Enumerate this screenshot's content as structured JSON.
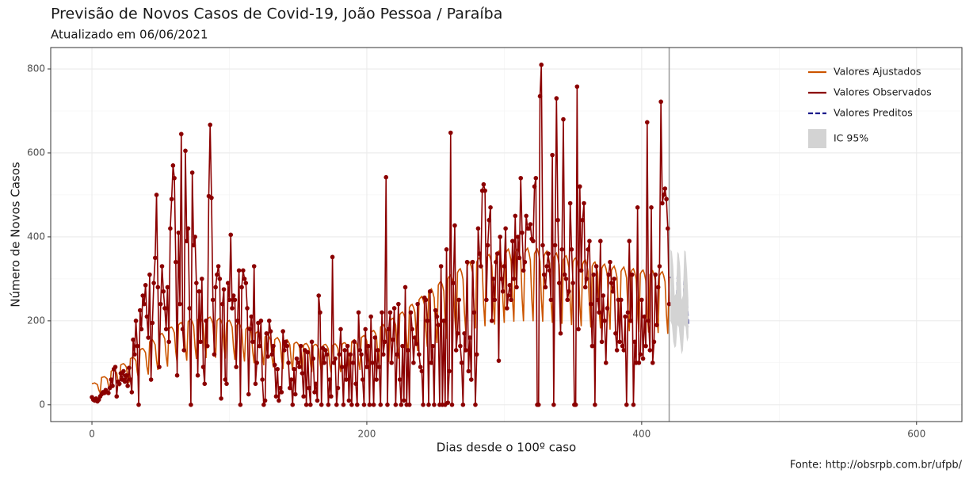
{
  "chart_data": {
    "type": "line",
    "title": "Previsão de Novos Casos de Covid-19, João Pessoa / Paraíba",
    "subtitle": "Atualizado em 06/06/2021",
    "x_label": "Dias desde o 100º caso",
    "y_label": "Número de Novos Casos",
    "caption": "Fonte: http://obsrpb.com.br/ufpb/",
    "xlim": [
      -30,
      633
    ],
    "ylim": [
      -40,
      851
    ],
    "xticks": [
      0,
      200,
      400,
      600
    ],
    "yticks": [
      0,
      200,
      400,
      600,
      800
    ],
    "x_minor_ticks": [
      100,
      300,
      500
    ],
    "y_minor_ticks": [
      100,
      300,
      500,
      700
    ],
    "grid": true,
    "vline": 420,
    "legend_position": "top-right",
    "x": [
      0,
      1,
      2,
      3,
      4,
      5,
      6,
      7,
      8,
      9,
      10,
      11,
      12,
      13,
      14,
      15,
      16,
      17,
      18,
      19,
      20,
      21,
      22,
      23,
      24,
      25,
      26,
      27,
      28,
      29,
      30,
      31,
      32,
      33,
      34,
      35,
      36,
      37,
      38,
      39,
      40,
      41,
      42,
      43,
      44,
      45,
      46,
      47,
      48,
      49,
      50,
      51,
      52,
      53,
      54,
      55,
      56,
      57,
      58,
      59,
      60,
      61,
      62,
      63,
      64,
      65,
      66,
      67,
      68,
      69,
      70,
      71,
      72,
      73,
      74,
      75,
      76,
      77,
      78,
      79,
      80,
      81,
      82,
      83,
      84,
      85,
      86,
      87,
      88,
      89,
      90,
      91,
      92,
      93,
      94,
      95,
      96,
      97,
      98,
      99,
      100,
      101,
      102,
      103,
      104,
      105,
      106,
      107,
      108,
      109,
      110,
      111,
      112,
      113,
      114,
      115,
      116,
      117,
      118,
      119,
      120,
      121,
      122,
      123,
      124,
      125,
      126,
      127,
      128,
      129,
      130,
      131,
      132,
      133,
      134,
      135,
      136,
      137,
      138,
      139,
      140,
      141,
      142,
      143,
      144,
      145,
      146,
      147,
      148,
      149,
      150,
      151,
      152,
      153,
      154,
      155,
      156,
      157,
      158,
      159,
      160,
      161,
      162,
      163,
      164,
      165,
      166,
      167,
      168,
      169,
      170,
      171,
      172,
      173,
      174,
      175,
      176,
      177,
      178,
      179,
      180,
      181,
      182,
      183,
      184,
      185,
      186,
      187,
      188,
      189,
      190,
      191,
      192,
      193,
      194,
      195,
      196,
      197,
      198,
      199,
      200,
      201,
      202,
      203,
      204,
      205,
      206,
      207,
      208,
      209,
      210,
      211,
      212,
      213,
      214,
      215,
      216,
      217,
      218,
      219,
      220,
      221,
      222,
      223,
      224,
      225,
      226,
      227,
      228,
      229,
      230,
      231,
      232,
      233,
      234,
      235,
      236,
      237,
      238,
      239,
      240,
      241,
      242,
      243,
      244,
      245,
      246,
      247,
      248,
      249,
      250,
      251,
      252,
      253,
      254,
      255,
      256,
      257,
      258,
      259,
      260,
      261,
      262,
      263,
      264,
      265,
      266,
      267,
      268,
      269,
      270,
      271,
      272,
      273,
      274,
      275,
      276,
      277,
      278,
      279,
      280,
      281,
      282,
      283,
      284,
      285,
      286,
      287,
      288,
      289,
      290,
      291,
      292,
      293,
      294,
      295,
      296,
      297,
      298,
      299,
      300,
      301,
      302,
      303,
      304,
      305,
      306,
      307,
      308,
      309,
      310,
      311,
      312,
      313,
      314,
      315,
      316,
      317,
      318,
      319,
      320,
      321,
      322,
      323,
      324,
      325,
      326,
      327,
      328,
      329,
      330,
      331,
      332,
      333,
      334,
      335,
      336,
      337,
      338,
      339,
      340,
      341,
      342,
      343,
      344,
      345,
      346,
      347,
      348,
      349,
      350,
      351,
      352,
      353,
      354,
      355,
      356,
      357,
      358,
      359,
      360,
      361,
      362,
      363,
      364,
      365,
      366,
      367,
      368,
      369,
      370,
      371,
      372,
      373,
      374,
      375,
      376,
      377,
      378,
      379,
      380,
      381,
      382,
      383,
      384,
      385,
      386,
      387,
      388,
      389,
      390,
      391,
      392,
      393,
      394,
      395,
      396,
      397,
      398,
      399,
      400,
      401,
      402,
      403,
      404,
      405,
      406,
      407,
      408,
      409,
      410,
      411,
      412,
      413,
      414,
      415,
      416,
      417,
      418,
      419,
      420
    ],
    "series": [
      {
        "name": "Valores Ajustados",
        "color": "#cc5500",
        "values": [
          50,
          51,
          52,
          50,
          48,
          35,
          28,
          65,
          66,
          67,
          65,
          62,
          46,
          36,
          80,
          82,
          82,
          80,
          76,
          56,
          44,
          95,
          97,
          98,
          95,
          90,
          67,
          52,
          110,
          112,
          113,
          110,
          105,
          77,
          61,
          130,
          133,
          134,
          130,
          124,
          91,
          72,
          150,
          153,
          155,
          150,
          143,
          105,
          83,
          165,
          168,
          170,
          165,
          157,
          116,
          91,
          180,
          184,
          185,
          180,
          171,
          126,
          99,
          190,
          194,
          196,
          190,
          181,
          133,
          105,
          198,
          202,
          204,
          198,
          188,
          139,
          109,
          202,
          206,
          208,
          202,
          192,
          141,
          111,
          203,
          207,
          209,
          203,
          193,
          142,
          112,
          200,
          204,
          206,
          200,
          190,
          140,
          110,
          195,
          199,
          201,
          195,
          185,
          137,
          107,
          188,
          192,
          194,
          188,
          179,
          132,
          103,
          180,
          184,
          185,
          180,
          171,
          126,
          99,
          170,
          173,
          175,
          170,
          162,
          119,
          94,
          162,
          165,
          167,
          162,
          154,
          113,
          89,
          155,
          158,
          160,
          155,
          147,
          109,
          85,
          150,
          153,
          155,
          150,
          143,
          105,
          83,
          145,
          148,
          149,
          145,
          138,
          102,
          80,
          142,
          145,
          146,
          142,
          135,
          99,
          78,
          140,
          143,
          144,
          140,
          133,
          98,
          77,
          140,
          143,
          144,
          140,
          133,
          98,
          77,
          141,
          144,
          145,
          141,
          134,
          99,
          78,
          144,
          147,
          148,
          144,
          137,
          101,
          79,
          150,
          153,
          155,
          150,
          143,
          105,
          83,
          160,
          163,
          165,
          160,
          152,
          112,
          88,
          172,
          175,
          177,
          172,
          163,
          120,
          95,
          185,
          189,
          191,
          185,
          176,
          130,
          102,
          200,
          204,
          206,
          200,
          190,
          140,
          110,
          215,
          219,
          221,
          215,
          204,
          151,
          118,
          232,
          237,
          239,
          232,
          220,
          162,
          128,
          250,
          255,
          258,
          250,
          238,
          175,
          138,
          268,
          273,
          276,
          268,
          255,
          188,
          147,
          285,
          291,
          294,
          285,
          271,
          200,
          157,
          300,
          306,
          309,
          300,
          285,
          210,
          165,
          315,
          321,
          324,
          315,
          299,
          221,
          173,
          330,
          337,
          340,
          330,
          314,
          231,
          182,
          340,
          347,
          350,
          340,
          323,
          238,
          187,
          348,
          355,
          358,
          348,
          331,
          244,
          191,
          355,
          362,
          366,
          355,
          337,
          249,
          195,
          360,
          367,
          371,
          360,
          342,
          252,
          198,
          362,
          369,
          373,
          362,
          344,
          253,
          199,
          362,
          369,
          373,
          362,
          344,
          253,
          199,
          360,
          367,
          371,
          360,
          342,
          252,
          198,
          355,
          362,
          366,
          355,
          337,
          249,
          195,
          350,
          357,
          361,
          350,
          333,
          245,
          193,
          345,
          352,
          355,
          345,
          328,
          242,
          190,
          340,
          347,
          350,
          340,
          323,
          238,
          187,
          335,
          342,
          345,
          335,
          318,
          235,
          184,
          330,
          337,
          340,
          330,
          314,
          231,
          182,
          325,
          332,
          335,
          325,
          309,
          228,
          179,
          320,
          326,
          330,
          320,
          304,
          224,
          176,
          318,
          324,
          328,
          318,
          302,
          223,
          175,
          315,
          321,
          324,
          315,
          299,
          221,
          173,
          312,
          318,
          321,
          312,
          296,
          218,
          172,
          310,
          316,
          319,
          310,
          295,
          217,
          171,
          308,
          314,
          317,
          308,
          293,
          216,
          169,
          305
        ]
      },
      {
        "name": "Valores Observados",
        "color": "#8b0000",
        "markers": true,
        "values": [
          18,
          12,
          10,
          15,
          8,
          12,
          20,
          25,
          30,
          28,
          35,
          30,
          28,
          40,
          60,
          45,
          85,
          90,
          20,
          55,
          50,
          75,
          60,
          80,
          55,
          70,
          45,
          88,
          60,
          30,
          155,
          120,
          200,
          140,
          0,
          225,
          180,
          260,
          240,
          285,
          210,
          160,
          310,
          60,
          195,
          290,
          350,
          500,
          280,
          90,
          240,
          330,
          270,
          230,
          180,
          280,
          150,
          420,
          490,
          570,
          540,
          340,
          70,
          410,
          240,
          645,
          180,
          130,
          605,
          390,
          420,
          230,
          0,
          553,
          380,
          400,
          290,
          70,
          270,
          150,
          300,
          90,
          50,
          200,
          140,
          497,
          667,
          493,
          250,
          120,
          280,
          310,
          330,
          300,
          15,
          240,
          275,
          60,
          50,
          290,
          250,
          405,
          230,
          260,
          250,
          90,
          200,
          320,
          0,
          280,
          320,
          300,
          290,
          230,
          25,
          180,
          210,
          150,
          330,
          50,
          100,
          195,
          140,
          200,
          60,
          0,
          10,
          170,
          115,
          200,
          175,
          120,
          140,
          95,
          20,
          85,
          10,
          40,
          30,
          175,
          130,
          150,
          140,
          100,
          40,
          60,
          0,
          85,
          25,
          110,
          100,
          90,
          140,
          75,
          20,
          130,
          0,
          125,
          40,
          0,
          150,
          110,
          30,
          50,
          10,
          260,
          220,
          0,
          135,
          100,
          130,
          120,
          0,
          60,
          20,
          352,
          100,
          110,
          0,
          40,
          120,
          180,
          90,
          0,
          130,
          60,
          140,
          10,
          120,
          0,
          100,
          150,
          50,
          0,
          220,
          130,
          120,
          60,
          0,
          180,
          90,
          140,
          0,
          210,
          100,
          0,
          160,
          60,
          130,
          90,
          0,
          220,
          120,
          150,
          542,
          0,
          180,
          220,
          100,
          155,
          230,
          0,
          120,
          240,
          60,
          0,
          140,
          10,
          280,
          0,
          130,
          0,
          220,
          180,
          100,
          160,
          145,
          240,
          120,
          90,
          80,
          0,
          255,
          250,
          200,
          0,
          270,
          100,
          140,
          0,
          225,
          210,
          190,
          0,
          330,
          0,
          200,
          0,
          370,
          5,
          80,
          648,
          0,
          290,
          427,
          130,
          170,
          250,
          140,
          100,
          0,
          170,
          130,
          340,
          80,
          160,
          60,
          340,
          220,
          0,
          120,
          420,
          360,
          330,
          510,
          525,
          510,
          250,
          380,
          440,
          470,
          200,
          300,
          250,
          340,
          360,
          105,
          400,
          300,
          270,
          330,
          420,
          230,
          260,
          285,
          250,
          390,
          300,
          450,
          280,
          400,
          350,
          540,
          410,
          320,
          340,
          450,
          420,
          420,
          430,
          395,
          390,
          520,
          540,
          0,
          0,
          735,
          810,
          380,
          310,
          280,
          330,
          360,
          320,
          250,
          595,
          0,
          380,
          730,
          440,
          290,
          170,
          370,
          680,
          310,
          300,
          250,
          270,
          480,
          370,
          290,
          0,
          0,
          758,
          180,
          520,
          320,
          440,
          480,
          280,
          300,
          370,
          390,
          240,
          140,
          310,
          0,
          330,
          250,
          220,
          390,
          150,
          260,
          200,
          100,
          230,
          310,
          340,
          290,
          270,
          300,
          170,
          130,
          250,
          150,
          250,
          140,
          130,
          210,
          0,
          220,
          390,
          200,
          310,
          0,
          150,
          100,
          470,
          100,
          120,
          250,
          110,
          210,
          140,
          673,
          200,
          130,
          470,
          100,
          150,
          310,
          190,
          280,
          330,
          722,
          480,
          500,
          515,
          490,
          420,
          240
        ]
      },
      {
        "name": "Valores Preditos",
        "color": "#1a1a8b",
        "dashed": true,
        "x": [
          421,
          422,
          423,
          424,
          425,
          426,
          427,
          428,
          429,
          430,
          431,
          432,
          433,
          434
        ],
        "values": [
          305,
          300,
          260,
          190,
          200,
          300,
          295,
          255,
          180,
          190,
          300,
          298,
          250,
          185
        ]
      },
      {
        "name": "IC 95%",
        "color": "#d3d3d3",
        "ribbon": true,
        "x": [
          421,
          422,
          423,
          424,
          425,
          426,
          427,
          428,
          429,
          430,
          431,
          432,
          433,
          434
        ],
        "lower": [
          200,
          190,
          150,
          135,
          140,
          190,
          185,
          150,
          120,
          130,
          190,
          185,
          150,
          160
        ],
        "upper": [
          370,
          365,
          330,
          260,
          265,
          365,
          360,
          330,
          250,
          260,
          368,
          365,
          320,
          250
        ]
      }
    ]
  }
}
